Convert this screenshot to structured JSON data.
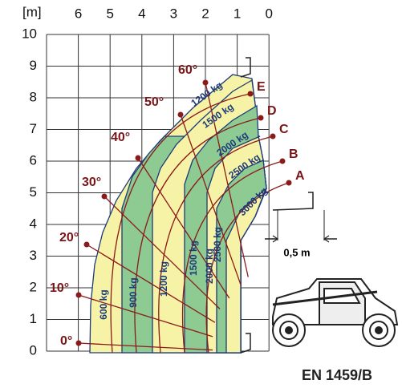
{
  "axes": {
    "unit": "[m]",
    "x_labels": [
      "6",
      "5",
      "4",
      "3",
      "2",
      "1",
      "0"
    ],
    "y_labels": [
      "10",
      "9",
      "8",
      "7",
      "6",
      "5",
      "4",
      "3",
      "2",
      "1",
      "0"
    ]
  },
  "angles": [
    "0°",
    "10°",
    "20°",
    "30°",
    "40°",
    "50°",
    "60°"
  ],
  "positions": [
    "A",
    "B",
    "C",
    "D",
    "E"
  ],
  "loads_vertical": [
    "600 kg",
    "900 kg",
    "1200 kg",
    "1500 kg",
    "2000 kg",
    "2500 kg"
  ],
  "loads_top": [
    "1200 kg",
    "1500 kg",
    "2000 kg",
    "2500 kg",
    "3000 kg"
  ],
  "dimension": "0,5 m",
  "standard": "EN 1459/B"
}
